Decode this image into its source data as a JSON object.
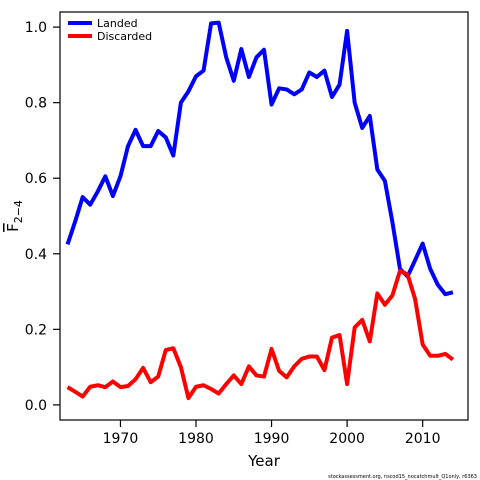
{
  "chart_data": {
    "type": "line",
    "xlabel": "Year",
    "ylabel": "F",
    "ylabel_subscript": "2−4",
    "xlim": [
      1962,
      2016
    ],
    "ylim": [
      -0.04,
      1.04
    ],
    "x_ticks": [
      1970,
      1980,
      1990,
      2000,
      2010
    ],
    "x_tick_labels": [
      "1970",
      "1980",
      "1990",
      "2000",
      "2010"
    ],
    "y_ticks": [
      0.0,
      0.2,
      0.4,
      0.6,
      0.8,
      1.0
    ],
    "y_tick_labels": [
      "0.0",
      "0.2",
      "0.4",
      "0.6",
      "0.8",
      "1.0"
    ],
    "grid": false,
    "legend_position": "top-left",
    "x": [
      1963,
      1964,
      1965,
      1966,
      1967,
      1968,
      1969,
      1970,
      1971,
      1972,
      1973,
      1974,
      1975,
      1976,
      1977,
      1978,
      1979,
      1980,
      1981,
      1982,
      1983,
      1984,
      1985,
      1986,
      1987,
      1988,
      1989,
      1990,
      1991,
      1992,
      1993,
      1994,
      1995,
      1996,
      1997,
      1998,
      1999,
      2000,
      2001,
      2002,
      2003,
      2004,
      2005,
      2006,
      2007,
      2008,
      2009,
      2010,
      2011,
      2012,
      2013,
      2014
    ],
    "series": [
      {
        "name": "Landed",
        "color": "#0000ff",
        "values": [
          0.425,
          0.485,
          0.55,
          0.53,
          0.565,
          0.605,
          0.553,
          0.605,
          0.685,
          0.728,
          0.685,
          0.685,
          0.725,
          0.708,
          0.66,
          0.8,
          0.83,
          0.87,
          0.885,
          1.01,
          1.012,
          0.92,
          0.858,
          0.942,
          0.868,
          0.92,
          0.94,
          0.795,
          0.838,
          0.835,
          0.822,
          0.835,
          0.88,
          0.868,
          0.885,
          0.815,
          0.848,
          0.99,
          0.8,
          0.733,
          0.765,
          0.623,
          0.593,
          0.483,
          0.36,
          0.34,
          0.383,
          0.427,
          0.36,
          0.318,
          0.293,
          0.298
        ]
      },
      {
        "name": "Discarded",
        "color": "#ff0000",
        "values": [
          0.047,
          0.035,
          0.022,
          0.048,
          0.052,
          0.047,
          0.062,
          0.047,
          0.05,
          0.068,
          0.098,
          0.06,
          0.075,
          0.145,
          0.15,
          0.1,
          0.018,
          0.048,
          0.052,
          0.042,
          0.03,
          0.055,
          0.078,
          0.055,
          0.102,
          0.078,
          0.075,
          0.148,
          0.09,
          0.073,
          0.102,
          0.122,
          0.128,
          0.128,
          0.092,
          0.178,
          0.185,
          0.055,
          0.205,
          0.225,
          0.168,
          0.295,
          0.265,
          0.29,
          0.355,
          0.345,
          0.28,
          0.16,
          0.13,
          0.13,
          0.135,
          0.12
        ]
      }
    ]
  },
  "footer": "stockassessment.org, nscod15_nocatchmult_Q1only, r6363"
}
